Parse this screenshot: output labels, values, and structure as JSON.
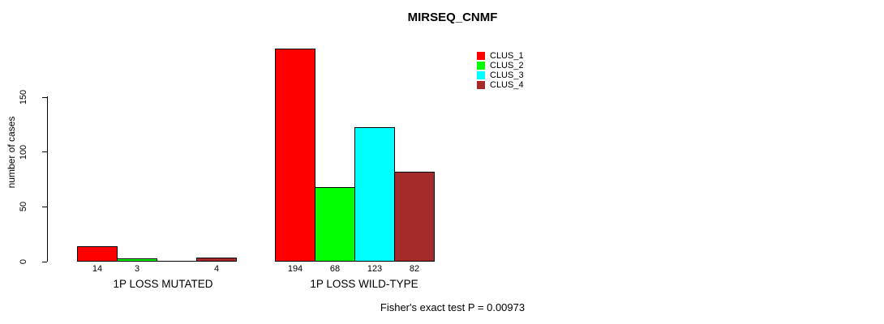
{
  "title": "MIRSEQ_CNMF",
  "footer": {
    "fisher_text": "Fisher's exact test P = 0.00973"
  },
  "legend": {
    "items": [
      {
        "label": "CLUS_1",
        "color": "#FF0000"
      },
      {
        "label": "CLUS_2",
        "color": "#00FF00"
      },
      {
        "label": "CLUS_3",
        "color": "#00FFFF"
      },
      {
        "label": "CLUS_4",
        "color": "#A52A2A"
      }
    ]
  },
  "chart_data": {
    "type": "bar",
    "title": "MIRSEQ_CNMF",
    "xlabel": "",
    "ylabel": "number of cases",
    "yticks": [
      0,
      50,
      100,
      150
    ],
    "ylim": [
      0,
      203
    ],
    "grid": false,
    "legend_position": "top-right",
    "categories": [
      "1P LOSS MUTATED",
      "1P LOSS WILD-TYPE"
    ],
    "series": [
      {
        "name": "CLUS_1",
        "color": "#FF0000",
        "values": [
          14,
          194
        ]
      },
      {
        "name": "CLUS_2",
        "color": "#00FF00",
        "values": [
          3,
          68
        ]
      },
      {
        "name": "CLUS_3",
        "color": "#00FFFF",
        "values": [
          0,
          123
        ]
      },
      {
        "name": "CLUS_4",
        "color": "#A52A2A",
        "values": [
          4,
          82
        ]
      }
    ],
    "bar_value_labels": {
      "1P LOSS MUTATED": [
        14,
        3,
        0,
        4
      ],
      "1P LOSS WILD-TYPE": [
        194,
        68,
        123,
        82
      ],
      "zero_values_unlabeled": true
    },
    "annotation": "Fisher's exact test P = 0.00973"
  }
}
